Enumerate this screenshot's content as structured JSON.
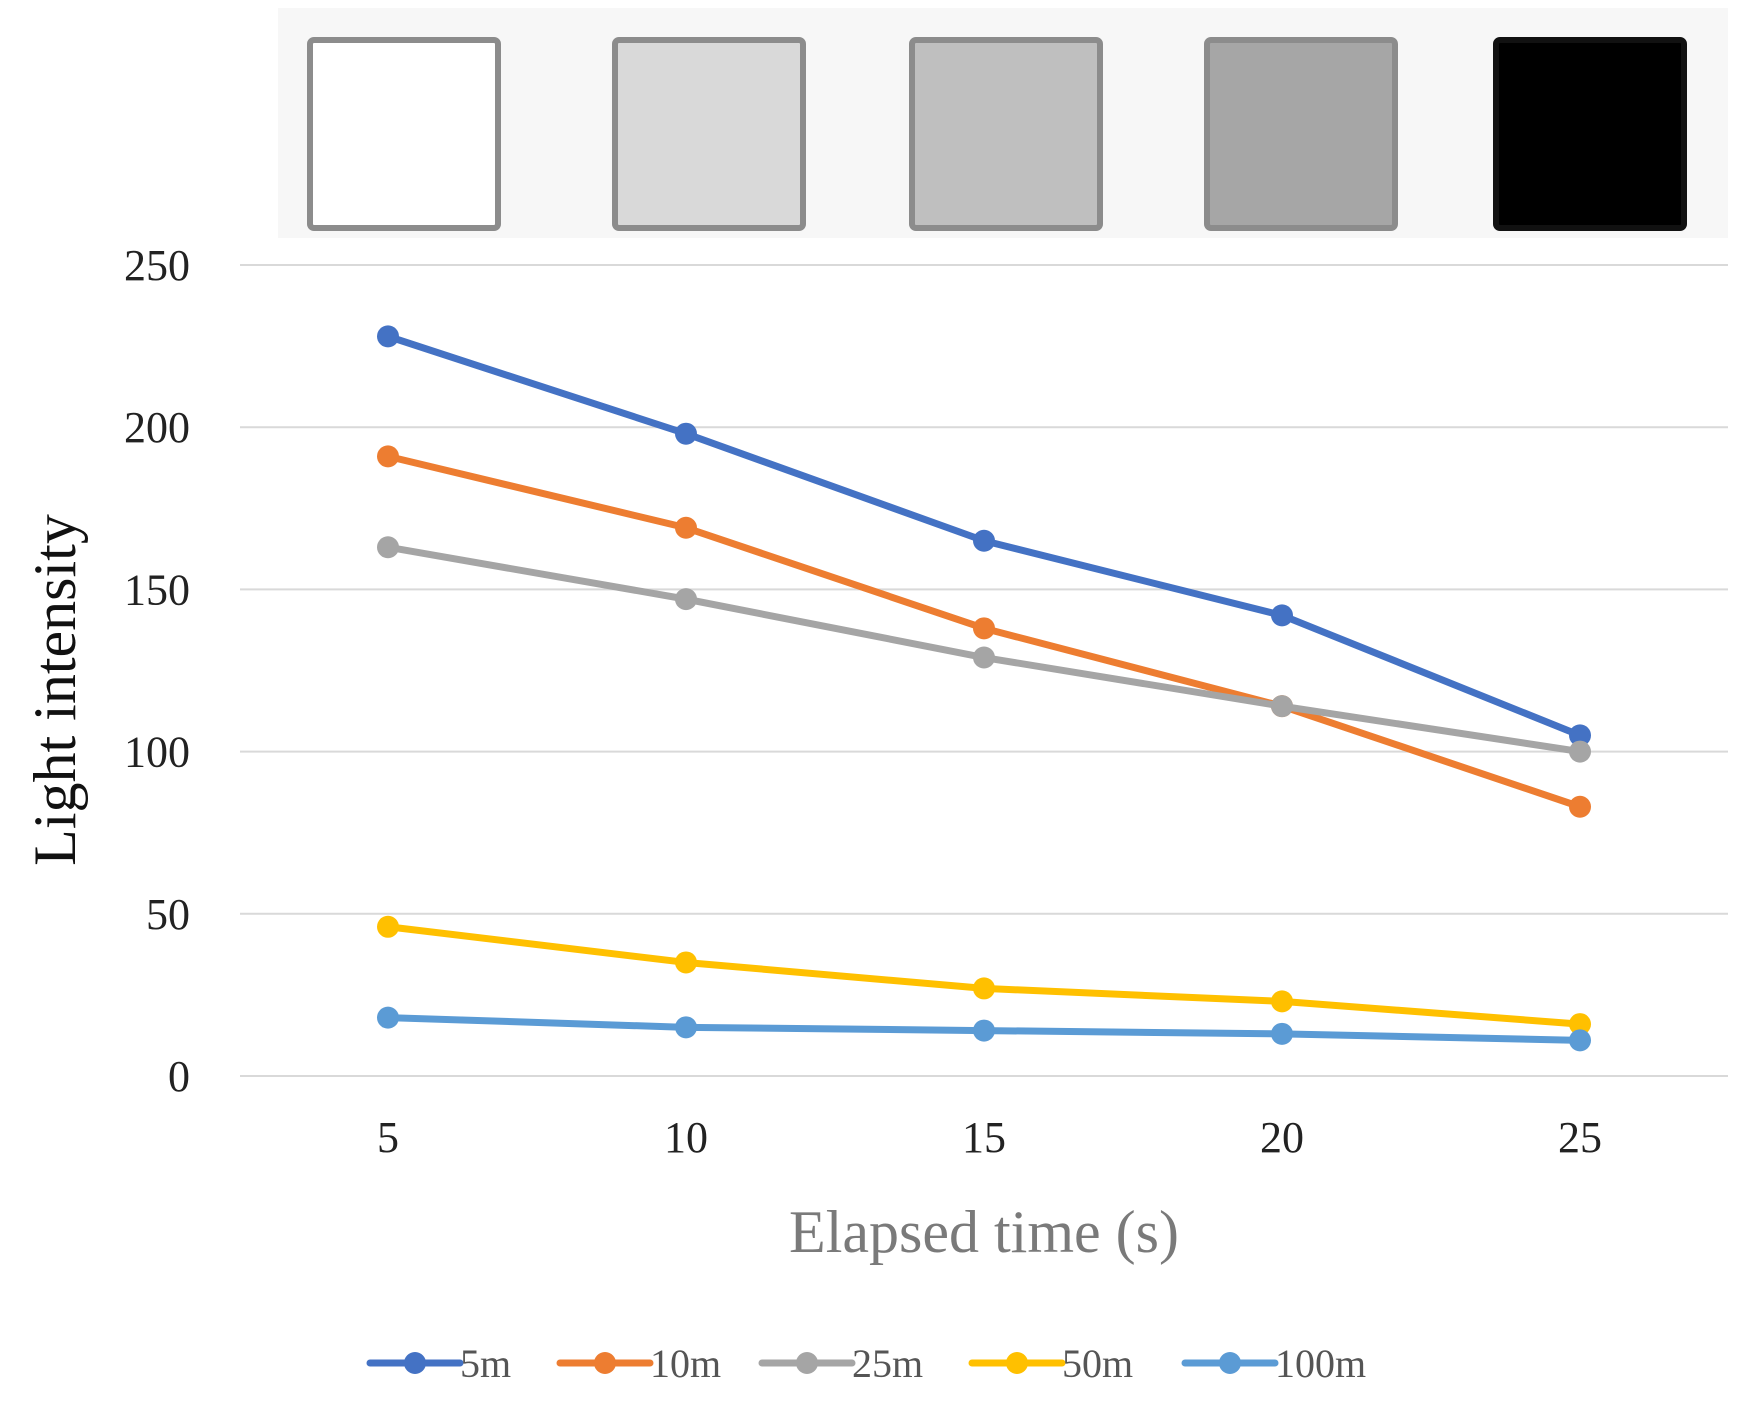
{
  "chart_data": {
    "type": "line",
    "title": "",
    "xlabel": "Elapsed time (s)",
    "ylabel": "Light intensity",
    "x": [
      5,
      10,
      15,
      20,
      25
    ],
    "x_tick_labels": [
      "5",
      "10",
      "15",
      "20",
      "25"
    ],
    "ylim": [
      0,
      250
    ],
    "y_ticks": [
      0,
      50,
      100,
      150,
      200,
      250
    ],
    "y_tick_labels": [
      "0",
      "50",
      "100",
      "150",
      "200",
      "250"
    ],
    "grid": true,
    "legend_position": "bottom",
    "series": [
      {
        "name": "5m",
        "color": "#4472c4",
        "values": [
          228,
          198,
          165,
          142,
          105
        ]
      },
      {
        "name": "10m",
        "color": "#ed7d31",
        "values": [
          191,
          169,
          138,
          114,
          83
        ]
      },
      {
        "name": "25m",
        "color": "#a5a5a5",
        "values": [
          163,
          147,
          129,
          114,
          100
        ]
      },
      {
        "name": "50m",
        "color": "#ffc000",
        "values": [
          46,
          35,
          27,
          23,
          16
        ]
      },
      {
        "name": "100m",
        "color": "#5b9bd5",
        "values": [
          18,
          15,
          14,
          13,
          11
        ]
      }
    ],
    "swatches": {
      "description_colors": [
        "#ffffff",
        "#d9d9d9",
        "#bfbfbf",
        "#a6a6a6",
        "#000000"
      ]
    }
  }
}
